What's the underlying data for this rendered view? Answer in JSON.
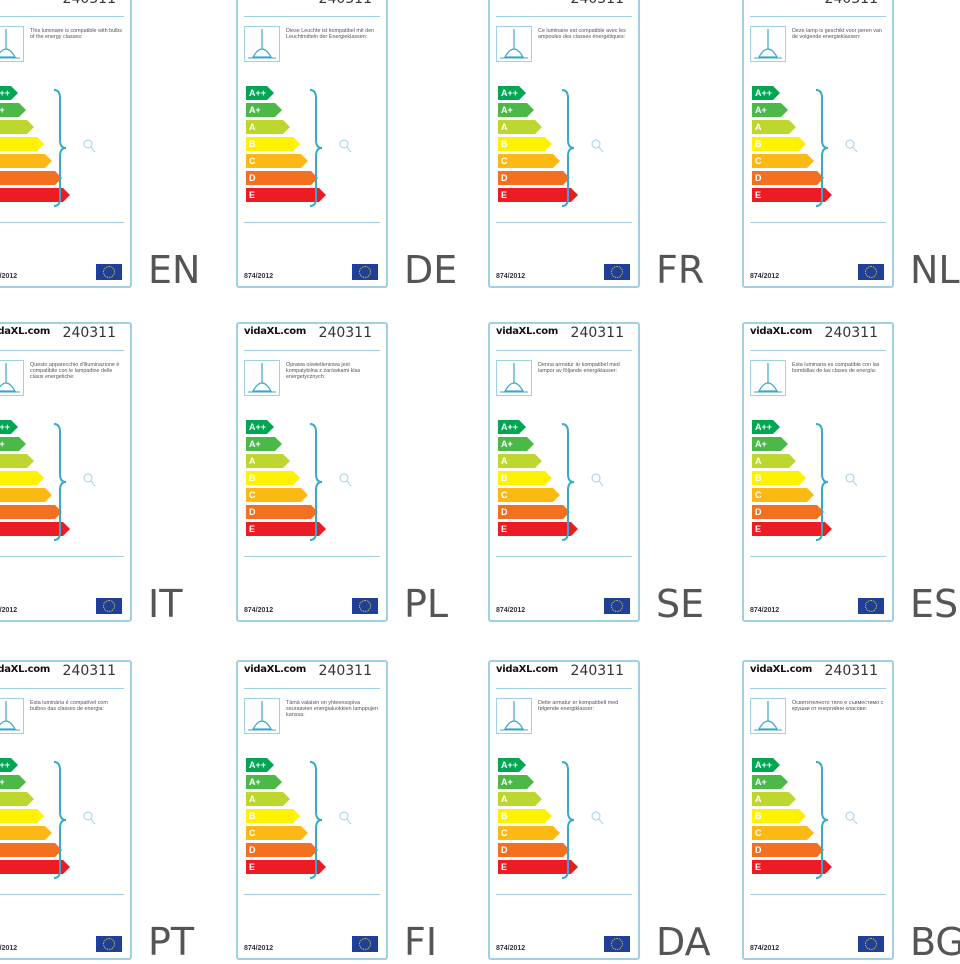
{
  "colors": {
    "border": "#9fd0e4",
    "bars": [
      "#00a651",
      "#4cb848",
      "#bed630",
      "#fff200",
      "#fdb913",
      "#f37021",
      "#ed1c24"
    ]
  },
  "brand": "vidaXL.com",
  "product_code": "240311",
  "regulation": "874/2012",
  "class_letters": [
    "A++",
    "A+",
    "A",
    "B",
    "C",
    "D",
    "E"
  ],
  "labels": [
    {
      "lang": "EN",
      "text": "This luminaire is compatible with bulbs of the energy classes:"
    },
    {
      "lang": "DE",
      "text": "Diese Leuchte ist kompatibel mit den Leuchtmitteln der Energieklassen:"
    },
    {
      "lang": "FR",
      "text": "Ce luminaire est compatible avec les ampoules des classes énergétiques:"
    },
    {
      "lang": "NL",
      "text": "Deze lamp is geschikt voor peren van de volgende energieklassen:"
    },
    {
      "lang": "IT",
      "text": "Questo apparecchio d'illuminazione è compatibile con le lampadine delle classi energetiche:"
    },
    {
      "lang": "PL",
      "text": "Oprawa oświetleniowa jest kompatybilna z żarówkami klas energetycznych:"
    },
    {
      "lang": "SE",
      "text": "Denna armatur är kompatibel med lampor av följande energiklasser:"
    },
    {
      "lang": "ES",
      "text": "Esta luminaria es compatible con las bombillas de las clases de energía:"
    },
    {
      "lang": "PT",
      "text": "Esta luminária é compatível com bulbos das classes de energia:"
    },
    {
      "lang": "FI",
      "text": "Tämä valaisin on yhteensopiva seuraavien energialuokkien lamppujen kanssa:"
    },
    {
      "lang": "DA",
      "text": "Dette armatur er kompatibelt med følgende energiklasser:"
    },
    {
      "lang": "BG",
      "text": "Осветителното тяло е съвместимо с крушки от енергийни класове:"
    }
  ]
}
